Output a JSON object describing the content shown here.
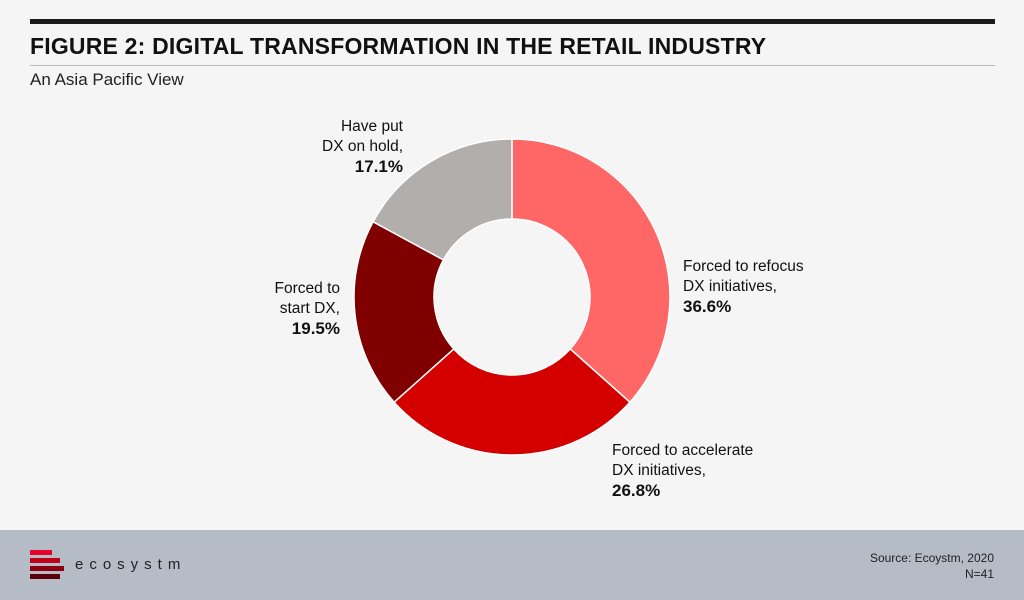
{
  "header": {
    "title": "FIGURE 2: DIGITAL TRANSFORMATION IN THE RETAIL INDUSTRY",
    "subtitle": "An Asia Pacific View"
  },
  "chart_data": {
    "type": "pie",
    "variant": "donut",
    "title": "FIGURE 2: DIGITAL TRANSFORMATION IN THE RETAIL INDUSTRY",
    "subtitle": "An Asia Pacific View",
    "slices": [
      {
        "label": "Forced to refocus DX initiatives,",
        "value": 36.6,
        "value_label": "36.6%",
        "color": "#ff6666"
      },
      {
        "label": "Forced to accelerate DX initiatives,",
        "value": 26.8,
        "value_label": "26.8%",
        "color": "#d40000"
      },
      {
        "label": "Forced to start DX,",
        "value": 19.5,
        "value_label": "19.5%",
        "color": "#800000"
      },
      {
        "label": "Have put DX on hold,",
        "value": 17.1,
        "value_label": "17.1%",
        "color": "#b1aeac"
      }
    ]
  },
  "labels": {
    "refocus": {
      "line1": "Forced to refocus",
      "line2": "DX initiatives,",
      "pct": "36.6%"
    },
    "accelerate": {
      "line1": "Forced to accelerate",
      "line2": "DX initiatives,",
      "pct": "26.8%"
    },
    "start": {
      "line1": "Forced to",
      "line2": "start DX,",
      "pct": "19.5%"
    },
    "hold": {
      "line1": "Have put",
      "line2": "DX on hold,",
      "pct": "17.1%"
    }
  },
  "footer": {
    "brand": "ecosystm",
    "source": "Source: Ecoystm, 2020",
    "n": "N=41",
    "logo_colors": [
      "#e8002d",
      "#c00018",
      "#8b0010",
      "#5a000a"
    ]
  }
}
